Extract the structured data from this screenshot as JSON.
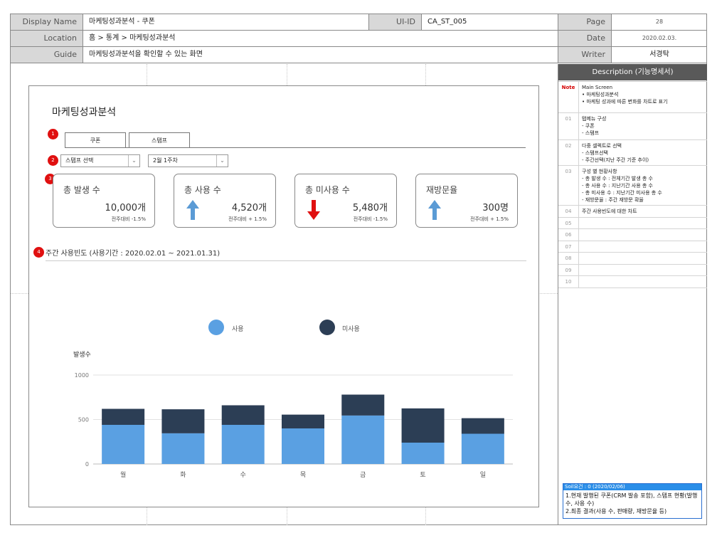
{
  "header": {
    "display_name_label": "Display Name",
    "display_name": "마케팅성과분석 - 쿠폰",
    "uiid_label": "UI-ID",
    "uiid": "CA_ST_005",
    "page_label": "Page",
    "page": "28",
    "location_label": "Location",
    "location": "홈 > 통계 > 마케팅성과분석",
    "date_label": "Date",
    "date": "2020.02.03.",
    "guide_label": "Guide",
    "guide": "마케팅성과분석을 확인할 수 있는 화면",
    "writer_label": "Writer",
    "writer": "서경탁"
  },
  "description": {
    "title": "Description (기능명세서)",
    "rows": [
      {
        "num": "Note",
        "text": "Main Screen\n• 마케팅성과분석\n• 마케팅 성과에 따른 변화를 차트로 표기"
      },
      {
        "num": "01",
        "text": "탭메뉴 구성\n  -   쿠폰\n  -   스탬프"
      },
      {
        "num": "02",
        "text": "다중 셀렉트로 선택\n  -   스탬프선택\n  -   주간선택(지난 주간 기준 추이)"
      },
      {
        "num": "03",
        "text": "구성 별 현황사항\n  -   총 발생 수 : 전체기간 발생 총 수\n  -   총 사용 수 : 지난기간 사용 총 수\n  -   총 미사용 수 : 지난기간 미사용 총 수\n  -   재방문율 : 주간 재방문 확율"
      },
      {
        "num": "04",
        "text": "주간 사용빈도에 대한 차트"
      },
      {
        "num": "05",
        "text": ""
      },
      {
        "num": "06",
        "text": ""
      },
      {
        "num": "07",
        "text": ""
      },
      {
        "num": "08",
        "text": ""
      },
      {
        "num": "09",
        "text": ""
      },
      {
        "num": "10",
        "text": ""
      }
    ]
  },
  "memo": {
    "header": "Soil요건 : 0 (2020/02/06)",
    "body": "1.현재 발행된 쿠폰(CRM 발송 포함), 스탬프 현황(발행수, 사용 수)\n2.최종 결과(사용 수, 판매량, 재방문율 등)"
  },
  "screen": {
    "title": "마케팅성과분석",
    "tabs": [
      "쿠폰",
      "스탬프"
    ],
    "select1": "스탬프 선택",
    "select2": "2월 1주차",
    "badges": [
      "1",
      "2",
      "3",
      "4"
    ],
    "cards": [
      {
        "label": "총 발생 수",
        "value": "10,000개",
        "sub": "전주대비 -1.5%",
        "arrow": "none"
      },
      {
        "label": "총 사용 수",
        "value": "4,520개",
        "sub": "전주대비 + 1.5%",
        "arrow": "up"
      },
      {
        "label": "총 미사용 수",
        "value": "5,480개",
        "sub": "전주대비 -1.5%",
        "arrow": "down"
      },
      {
        "label": "재방문율",
        "value": "300명",
        "sub": "전주대비 + 1.5%",
        "arrow": "up"
      }
    ],
    "section_title": "주간 사용빈도 (사용기간 : 2020.02.01 ~ 2021.01.31)"
  },
  "colors": {
    "used": "#5aa0e2",
    "unused": "#2c3e55",
    "arrow_up": "#5b9bd5",
    "arrow_down": "#e01010"
  },
  "chart_data": {
    "type": "bar",
    "stacked": true,
    "ylabel": "발생수",
    "ylim": [
      0,
      1000
    ],
    "yticks": [
      0,
      500,
      1000
    ],
    "categories": [
      "월",
      "화",
      "수",
      "목",
      "금",
      "토",
      "일"
    ],
    "series": [
      {
        "name": "사용",
        "values": [
          440,
          345,
          440,
          400,
          545,
          240,
          340
        ]
      },
      {
        "name": "미사용",
        "values": [
          180,
          270,
          220,
          155,
          235,
          385,
          175
        ]
      }
    ],
    "legend_position": "top",
    "grid": true
  }
}
